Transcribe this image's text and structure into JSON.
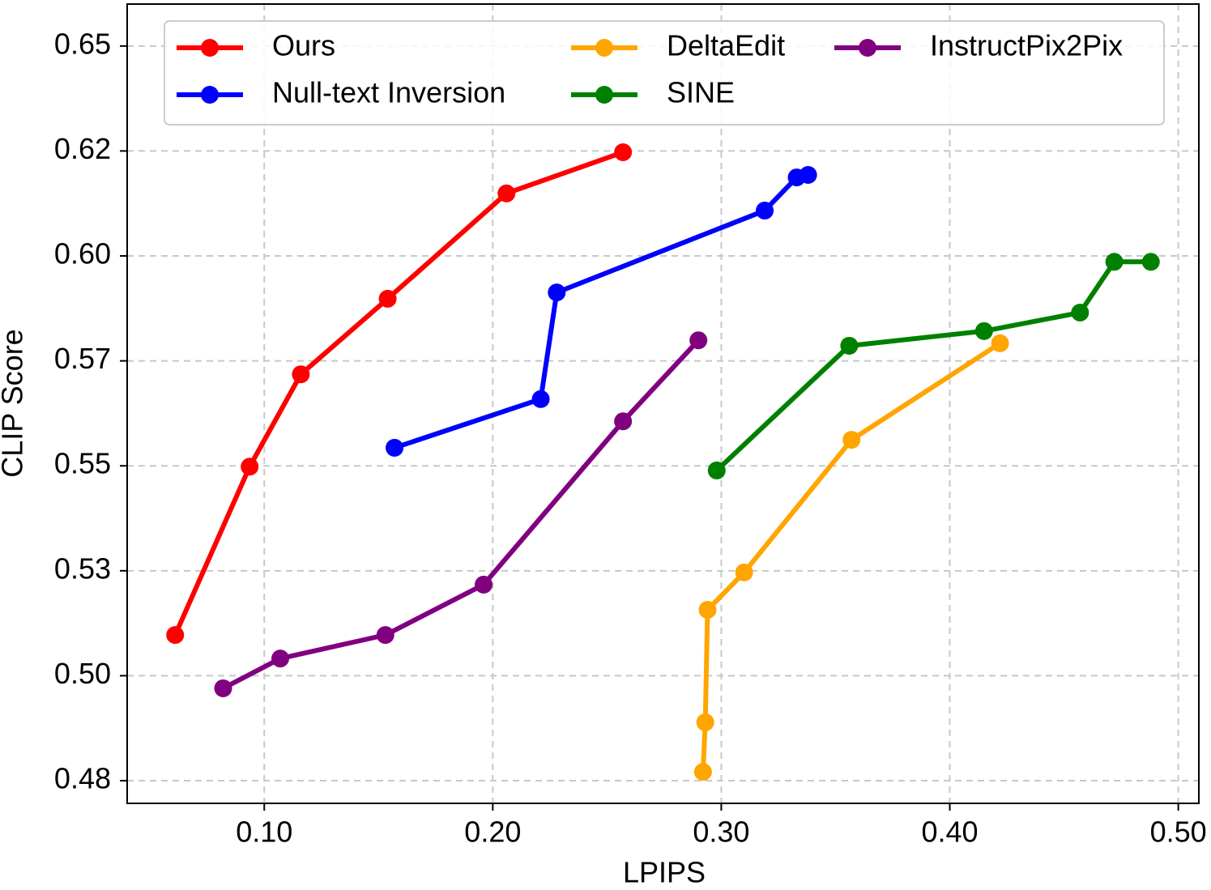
{
  "chart_data": {
    "type": "line",
    "x_label": "LPIPS",
    "y_label": "CLIP Score",
    "xlim": [
      0.04,
      0.509
    ],
    "ylim": [
      0.4696,
      0.66
    ],
    "xticks": [
      {
        "value": 0.1,
        "label": "0.10"
      },
      {
        "value": 0.2,
        "label": "0.20"
      },
      {
        "value": 0.3,
        "label": "0.30"
      },
      {
        "value": 0.4,
        "label": "0.40"
      },
      {
        "value": 0.5,
        "label": "0.50"
      }
    ],
    "yticks": [
      {
        "value": 0.475,
        "label": "0.48"
      },
      {
        "value": 0.5,
        "label": "0.50"
      },
      {
        "value": 0.525,
        "label": "0.53"
      },
      {
        "value": 0.55,
        "label": "0.55"
      },
      {
        "value": 0.575,
        "label": "0.57"
      },
      {
        "value": 0.6,
        "label": "0.60"
      },
      {
        "value": 0.625,
        "label": "0.62"
      },
      {
        "value": 0.65,
        "label": "0.65"
      }
    ],
    "grid": true,
    "legend": "upper center",
    "series": [
      {
        "name": "Ours",
        "color": "#ff0000",
        "x": [
          0.061,
          0.0936,
          0.116,
          0.154,
          0.206,
          0.257
        ],
        "values": [
          0.5097,
          0.5498,
          0.5718,
          0.5898,
          0.6149,
          0.6247
        ]
      },
      {
        "name": "Null-text Inversion",
        "color": "#0000ff",
        "x": [
          0.157,
          0.221,
          0.228,
          0.319,
          0.333,
          0.338
        ],
        "values": [
          0.5543,
          0.5659,
          0.5913,
          0.6108,
          0.6187,
          0.6193
        ]
      },
      {
        "name": "DeltaEdit",
        "color": "#ffa500",
        "x": [
          0.292,
          0.293,
          0.294,
          0.31,
          0.357,
          0.422
        ],
        "values": [
          0.4771,
          0.4889,
          0.5157,
          0.5246,
          0.5562,
          0.5792
        ]
      },
      {
        "name": "SINE",
        "color": "#008000",
        "x": [
          0.298,
          0.356,
          0.415,
          0.457,
          0.472,
          0.488
        ],
        "values": [
          0.5489,
          0.5786,
          0.5821,
          0.5865,
          0.5986,
          0.5986
        ]
      },
      {
        "name": "InstructPix2Pix",
        "color": "#800080",
        "x": [
          0.082,
          0.107,
          0.153,
          0.196,
          0.257,
          0.29
        ],
        "values": [
          0.497,
          0.5041,
          0.5097,
          0.5217,
          0.5606,
          0.5799
        ]
      }
    ]
  }
}
